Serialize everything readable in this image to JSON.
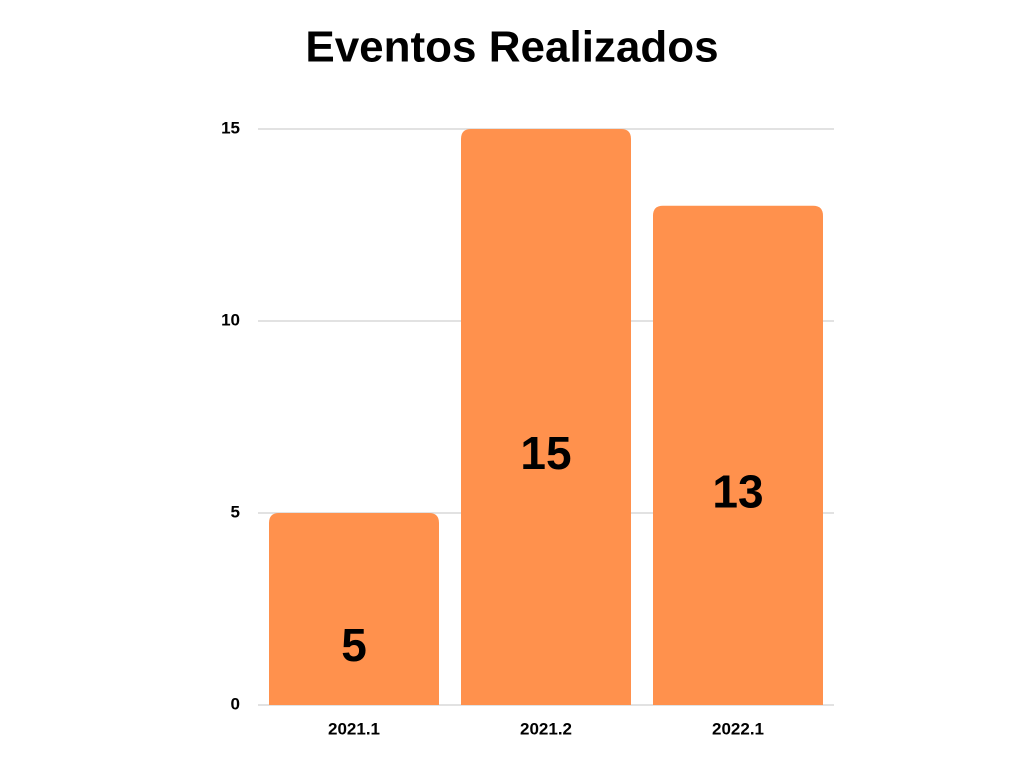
{
  "chart_data": {
    "type": "bar",
    "title": "Eventos Realizados",
    "categories": [
      "2021.1",
      "2021.2",
      "2022.1"
    ],
    "values": [
      5,
      15,
      13
    ],
    "color": "#ff914d",
    "ylim": [
      0,
      15
    ],
    "yticks": [
      0,
      5,
      10,
      15
    ],
    "grid": true
  }
}
